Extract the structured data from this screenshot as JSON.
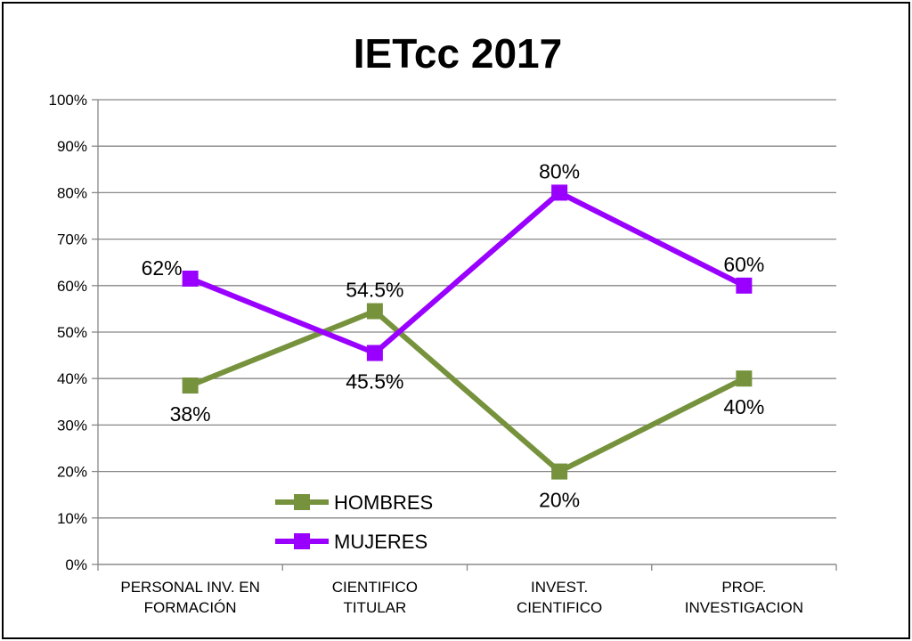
{
  "chart_data": {
    "type": "line",
    "title": "IETcc  2017",
    "categories": [
      [
        "PERSONAL INV. EN",
        "FORMACIÓN"
      ],
      [
        "CIENTIFICO",
        "TITULAR"
      ],
      [
        "INVEST.",
        "CIENTIFICO"
      ],
      [
        "PROF.",
        "INVESTIGACION"
      ]
    ],
    "ylim": [
      0,
      100
    ],
    "yticks": [
      "0%",
      "10%",
      "20%",
      "30%",
      "40%",
      "50%",
      "60%",
      "70%",
      "80%",
      "90%",
      "100%"
    ],
    "grid": true,
    "legend_position": "bottom-left",
    "series": [
      {
        "name": "HOMBRES",
        "color": "#76923C",
        "values": [
          38.5,
          54.5,
          20,
          40
        ],
        "labels": [
          "38%",
          "54.5%",
          "20%",
          "40%"
        ],
        "label_side": [
          "below",
          "above",
          "below",
          "below"
        ]
      },
      {
        "name": "MUJERES",
        "color": "#9900FF",
        "values": [
          61.5,
          45.5,
          80,
          60
        ],
        "labels": [
          "62%",
          "45.5%",
          "80%",
          "60%"
        ],
        "label_side": [
          "above-left",
          "below",
          "above",
          "above"
        ]
      }
    ]
  }
}
